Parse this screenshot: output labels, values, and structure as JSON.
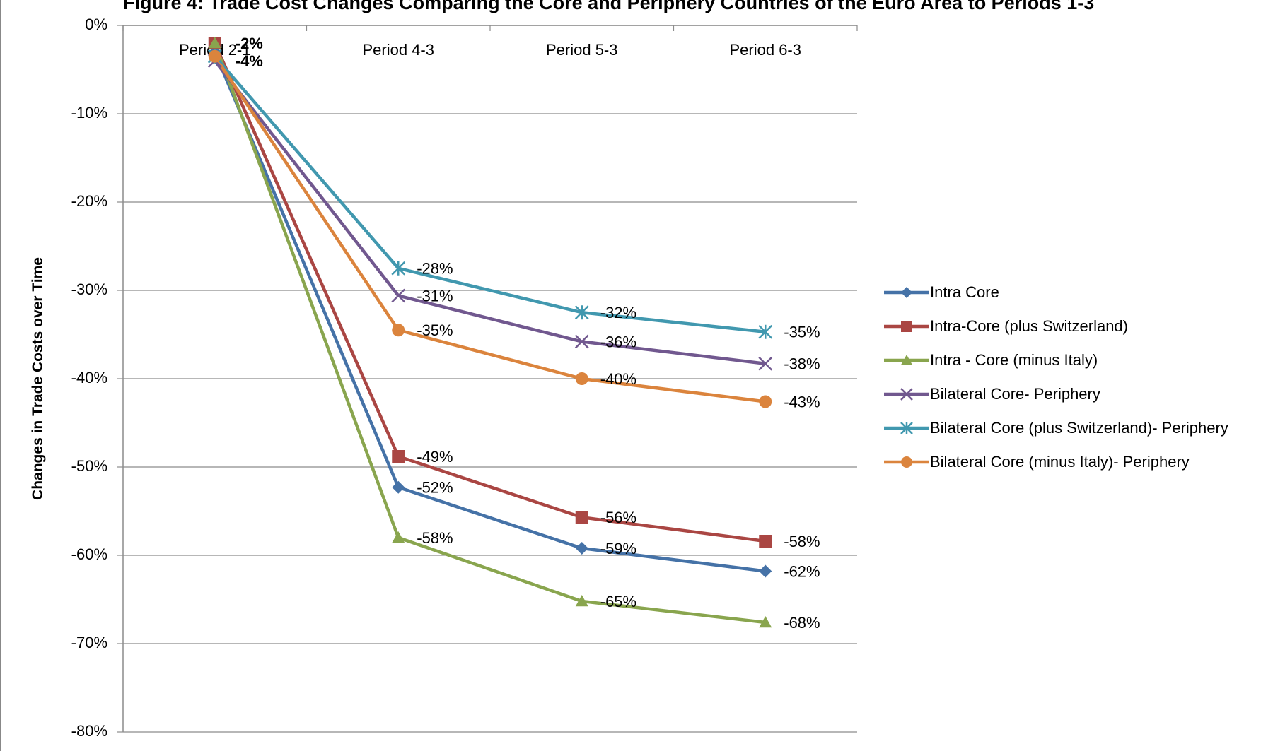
{
  "chart_data": {
    "type": "line",
    "title": "Figure 4: Trade Cost Changes Comparing the Core and Periphery Countries of the Euro Area to Periods 1-3",
    "xlabel": "",
    "ylabel": "Changes in Trade Costs over Time",
    "categories": [
      "Period 2-1",
      "Period 4-3",
      "Period 5-3",
      "Period 6-3"
    ],
    "y_ticks": [
      "0%",
      "-10%",
      "-20%",
      "-30%",
      "-40%",
      "-50%",
      "-60%",
      "-70%",
      "-80%"
    ],
    "ylim": [
      -0.8,
      0
    ],
    "grid": true,
    "legend_position": "right",
    "series": [
      {
        "name": "Intra Core",
        "color": "#4572A7",
        "marker": "diamond",
        "values": [
          -0.03,
          -0.523,
          -0.592,
          -0.618
        ],
        "labels": [
          "",
          "-52%",
          "-59%",
          "-62%"
        ]
      },
      {
        "name": "Intra-Core (plus Switzerland)",
        "color": "#AA4643",
        "marker": "square",
        "values": [
          -0.02,
          -0.488,
          -0.557,
          -0.584
        ],
        "labels": [
          "-2%",
          "-49%",
          "-56%",
          "-58%"
        ]
      },
      {
        "name": "Intra - Core (minus Italy)",
        "color": "#89A54E",
        "marker": "triangle",
        "values": [
          -0.02,
          -0.58,
          -0.652,
          -0.676
        ],
        "labels": [
          "",
          "-58%",
          "-65%",
          "-68%"
        ]
      },
      {
        "name": "Bilateral Core- Periphery",
        "color": "#71588F",
        "marker": "x",
        "values": [
          -0.04,
          -0.306,
          -0.358,
          -0.383
        ],
        "labels": [
          "-4%",
          "-31%",
          "-36%",
          "-38%"
        ]
      },
      {
        "name": "Bilateral Core (plus Switzerland)- Periphery",
        "color": "#4198AF",
        "marker": "star",
        "values": [
          -0.035,
          -0.275,
          -0.325,
          -0.347
        ],
        "labels": [
          "",
          "-28%",
          "-32%",
          "-35%"
        ]
      },
      {
        "name": "Bilateral Core (minus Italy)- Periphery",
        "color": "#DB843D",
        "marker": "circle",
        "values": [
          -0.035,
          -0.345,
          -0.4,
          -0.426
        ],
        "labels": [
          "",
          "-35%",
          "-40%",
          "-43%"
        ]
      }
    ]
  }
}
